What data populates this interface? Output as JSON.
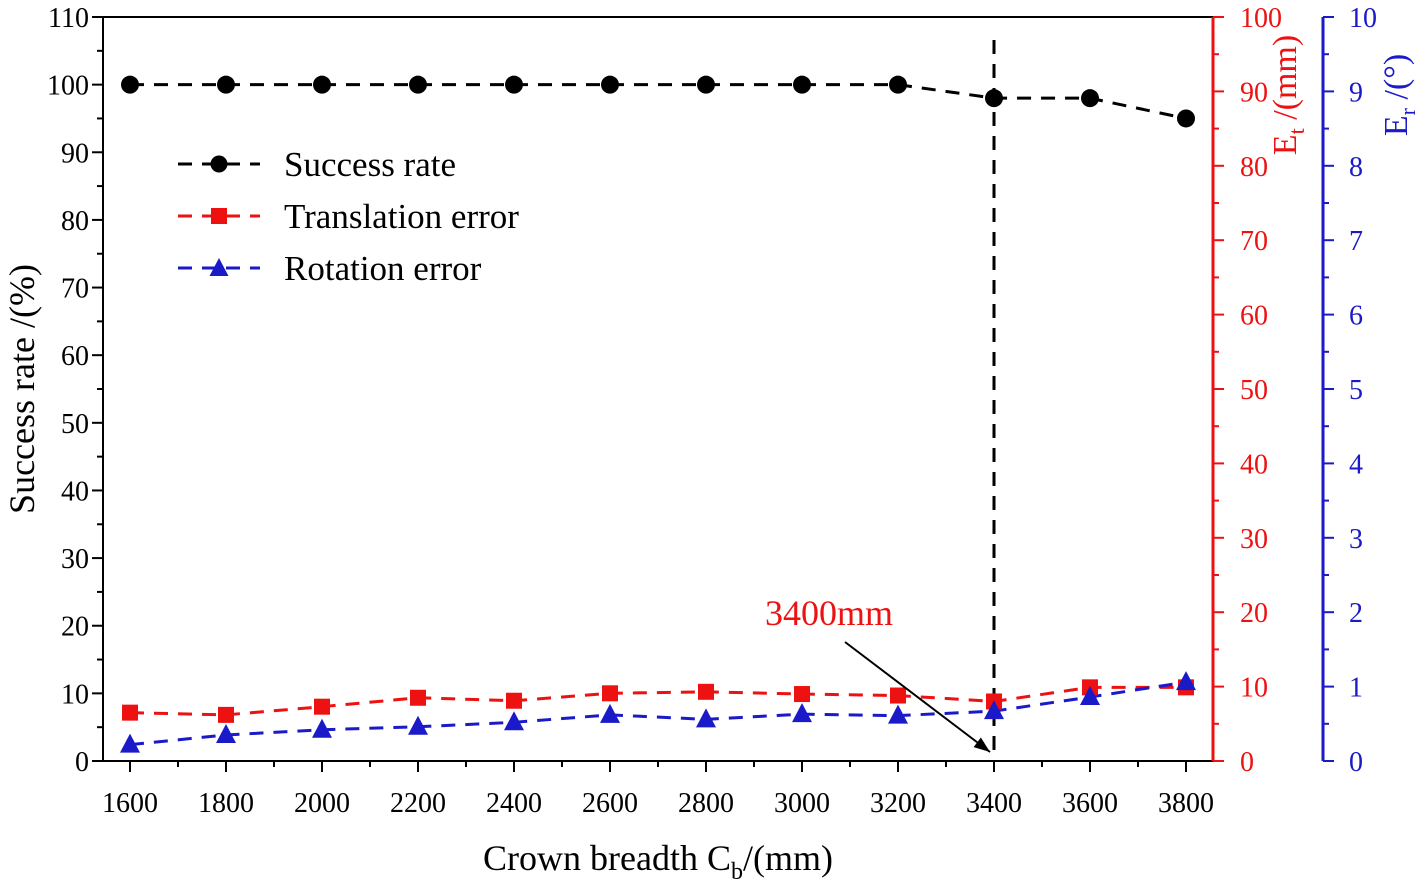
{
  "chart_data": {
    "type": "line",
    "x": [
      1600,
      1800,
      2000,
      2200,
      2400,
      2600,
      2800,
      3000,
      3200,
      3400,
      3600,
      3800
    ],
    "xlabel_main": "Crown breadth C",
    "xlabel_sub": "b",
    "xlabel_tail": "/(mm)",
    "ylabel_left": "Success rate /(%)",
    "ylabel_right1_main": "E",
    "ylabel_right1_sub": "t",
    "ylabel_right1_tail": " /(mm)",
    "ylabel_right2_main": "E",
    "ylabel_right2_sub": "r",
    "ylabel_right2_tail": " /(°)",
    "xlim": [
      1600,
      3800
    ],
    "ylim_left": [
      0,
      110
    ],
    "ylim_right1": [
      0,
      100
    ],
    "ylim_right2": [
      0,
      10
    ],
    "x_ticks": [
      1600,
      1800,
      2000,
      2200,
      2400,
      2600,
      2800,
      3000,
      3200,
      3400,
      3600,
      3800
    ],
    "y_left_ticks": [
      0,
      10,
      20,
      30,
      40,
      50,
      60,
      70,
      80,
      90,
      100,
      110
    ],
    "y_right1_ticks": [
      0,
      10,
      20,
      30,
      40,
      50,
      60,
      70,
      80,
      90,
      100
    ],
    "y_right2_ticks": [
      0,
      1,
      2,
      3,
      4,
      5,
      6,
      7,
      8,
      9,
      10
    ],
    "grid": false,
    "legend_position": "upper-left",
    "series": [
      {
        "name": "Success rate",
        "axis": "left",
        "color": "#000000",
        "marker": "circle",
        "values": [
          100,
          100,
          100,
          100,
          100,
          100,
          100,
          100,
          100,
          98,
          98,
          95
        ]
      },
      {
        "name": "Translation error",
        "axis": "right1",
        "color": "#ee1111",
        "marker": "square",
        "values": [
          6.5,
          6.2,
          7.3,
          8.5,
          8.1,
          9.1,
          9.3,
          9.0,
          8.8,
          8.0,
          9.9,
          9.9
        ]
      },
      {
        "name": "Rotation error",
        "axis": "right2",
        "color": "#1a1ac8",
        "marker": "triangle",
        "values": [
          0.22,
          0.35,
          0.42,
          0.46,
          0.52,
          0.62,
          0.56,
          0.63,
          0.61,
          0.67,
          0.86,
          1.06
        ]
      }
    ],
    "annotation": {
      "text": "3400mm",
      "x": 3400,
      "color": "#ee1111"
    }
  }
}
